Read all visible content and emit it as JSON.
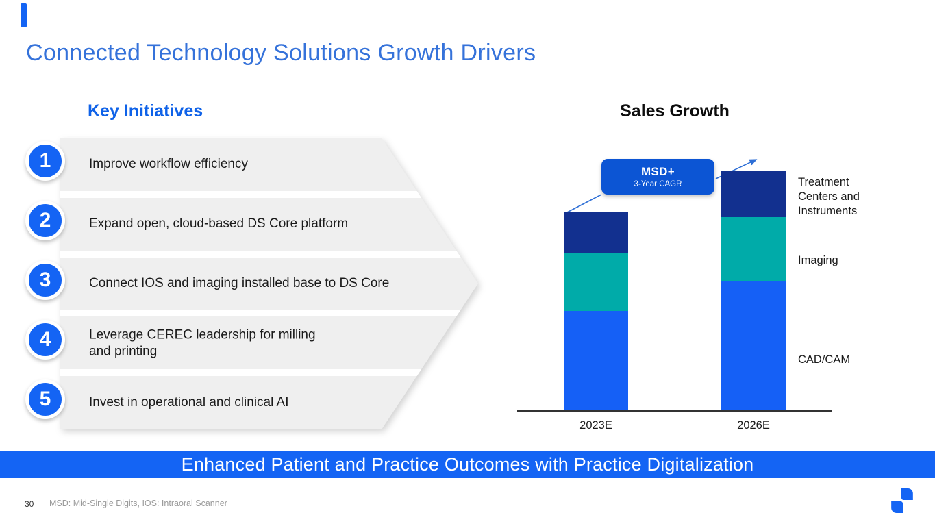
{
  "slide": {
    "title": "Connected Technology Solutions Growth Drivers",
    "banner": "Enhanced Patient and Practice Outcomes with Practice Digitalization",
    "page_number": "30",
    "footnote": "MSD: Mid-Single Digits, IOS: Intraoral Scanner"
  },
  "key_initiatives": {
    "heading": "Key Initiatives",
    "items": [
      {
        "number": "1",
        "text": "Improve workflow efficiency"
      },
      {
        "number": "2",
        "text": "Expand open, cloud-based DS Core platform"
      },
      {
        "number": "3",
        "text": "Connect IOS and imaging installed base to DS Core"
      },
      {
        "number": "4",
        "text": "Leverage CEREC leadership for milling\nand printing"
      },
      {
        "number": "5",
        "text": "Invest in operational and clinical AI"
      }
    ]
  },
  "chart_data": {
    "type": "bar",
    "stacked": true,
    "title": "Sales Growth",
    "categories": [
      "2023E",
      "2026E"
    ],
    "series": [
      {
        "name": "CAD/CAM",
        "color": "#1560F6",
        "values": [
          50,
          65
        ]
      },
      {
        "name": "Imaging",
        "color": "#00ABA9",
        "values": [
          29,
          32
        ]
      },
      {
        "name": "Treatment Centers and Instruments",
        "color": "#12308F",
        "values": [
          21,
          23
        ]
      }
    ],
    "value_units": "relative index (2023E total = 100), estimated from bar heights; no numeric axis shown",
    "annotation": {
      "label": "MSD+",
      "sublabel": "3-Year CAGR"
    },
    "xlabel": "",
    "ylabel": "",
    "grid": false,
    "legend_position": "right"
  },
  "colors": {
    "accent_blue": "#1464F4",
    "title_blue": "#3572DA",
    "heading_blue": "#0F62E8",
    "badge_blue": "#0C55D4",
    "bar_blue": "#1560F6",
    "teal": "#00ABA9",
    "navy": "#12308F",
    "row_gray": "#EFEFEF",
    "arrow_line_blue": "#2E6FD6"
  }
}
